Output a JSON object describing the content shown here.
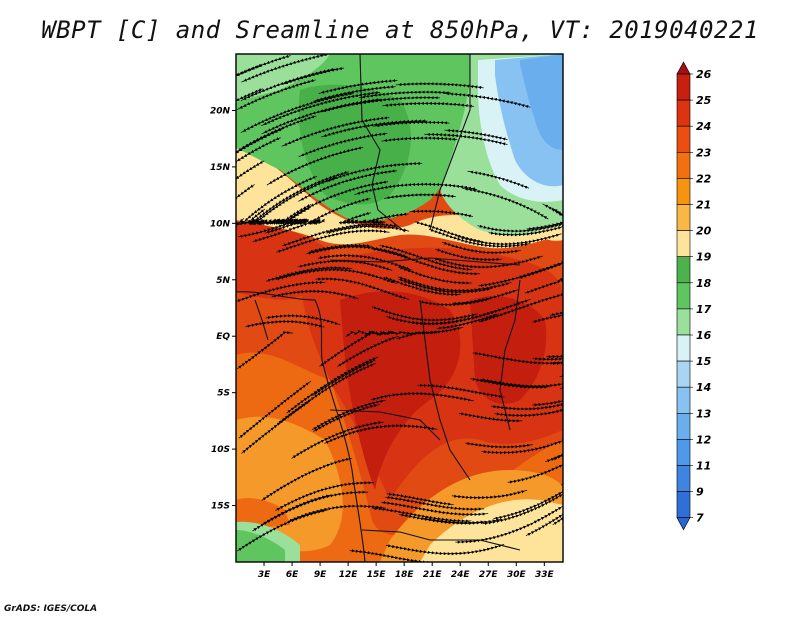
{
  "title": "WBPT [C] and Sreamline at 850hPa, VT: 2019040221",
  "credit": "GrADS: IGES/COLA",
  "map": {
    "lat_range": [
      -20,
      25
    ],
    "lon_range": [
      0,
      35
    ],
    "lat_labels": [
      {
        "lat": 20,
        "text": "20N"
      },
      {
        "lat": 15,
        "text": "15N"
      },
      {
        "lat": 10,
        "text": "10N"
      },
      {
        "lat": 5,
        "text": "5N"
      },
      {
        "lat": 0,
        "text": "EQ"
      },
      {
        "lat": -5,
        "text": "5S"
      },
      {
        "lat": -10,
        "text": "10S"
      },
      {
        "lat": -15,
        "text": "15S"
      }
    ],
    "lon_labels": [
      {
        "lon": 3,
        "text": "3E"
      },
      {
        "lon": 6,
        "text": "6E"
      },
      {
        "lon": 9,
        "text": "9E"
      },
      {
        "lon": 12,
        "text": "12E"
      },
      {
        "lon": 15,
        "text": "15E"
      },
      {
        "lon": 18,
        "text": "18E"
      },
      {
        "lon": 21,
        "text": "21E"
      },
      {
        "lon": 24,
        "text": "24E"
      },
      {
        "lon": 27,
        "text": "27E"
      },
      {
        "lon": 30,
        "text": "30E"
      },
      {
        "lon": 33,
        "text": "33E"
      }
    ]
  },
  "colorbar": {
    "levels": [
      {
        "label": "26",
        "color": "#a50f15"
      },
      {
        "label": "25",
        "color": "#c8200e"
      },
      {
        "label": "24",
        "color": "#dc3310"
      },
      {
        "label": "23",
        "color": "#ea4f10"
      },
      {
        "label": "22",
        "color": "#f2700f"
      },
      {
        "label": "21",
        "color": "#f7940f"
      },
      {
        "label": "20",
        "color": "#f9b845"
      },
      {
        "label": "19",
        "color": "#fde49a"
      },
      {
        "label": "18",
        "color": "#4cb34c"
      },
      {
        "label": "17",
        "color": "#5fc55f"
      },
      {
        "label": "16",
        "color": "#9adf9a"
      },
      {
        "label": "15",
        "color": "#d8f2f6"
      },
      {
        "label": "14",
        "color": "#a9d5f4"
      },
      {
        "label": "13",
        "color": "#88c2f2"
      },
      {
        "label": "12",
        "color": "#6aaeee"
      },
      {
        "label": "11",
        "color": "#4f99ea"
      },
      {
        "label": "9",
        "color": "#3f84e0"
      },
      {
        "label": "7",
        "color": "#2f6fd8"
      }
    ],
    "bottom_color": "#2a66d4"
  },
  "field_colors": {
    "deep_red": "#c41e0f",
    "red": "#d83414",
    "red_orange": "#e24a14",
    "orange": "#ee6a12",
    "light_orange": "#f59a2a",
    "pale": "#fde49a",
    "green": "#5fc55f",
    "dark_green": "#48b048",
    "light_green": "#9adf9a",
    "pale_blue": "#d8f2f6",
    "blue": "#88c2f2",
    "mid_blue": "#6aaeee"
  }
}
